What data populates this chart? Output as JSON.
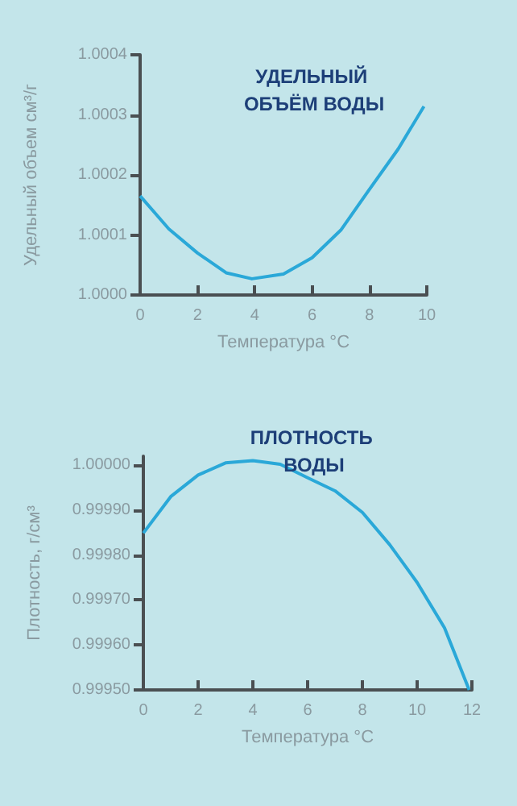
{
  "chart_data": [
    {
      "type": "line",
      "title": "УДЕЛЬНЫЙ ОБЪЁМ ВОДЫ",
      "xlabel": "Температура °C",
      "ylabel": "Удельный объем см³/г",
      "x": [
        0,
        1,
        2,
        3,
        3.9,
        5,
        6,
        7,
        8,
        9,
        9.9
      ],
      "series": [
        {
          "color": "#2aa8d8",
          "values": [
            1.000165,
            1.00011,
            1.00007,
            1.000037,
            1.000027,
            1.000035,
            1.000062,
            1.000108,
            1.000176,
            1.000243,
            1.000314
          ]
        }
      ],
      "xlim": [
        0,
        10
      ],
      "xticks": [
        0,
        2,
        4,
        6,
        8,
        10
      ],
      "ylim": [
        1,
        1.0004
      ],
      "yticks": [
        {
          "value": 1,
          "label": "1.0000"
        },
        1.0001,
        1.0002,
        1.0003,
        1.0004
      ],
      "grid": false,
      "marker": "none",
      "line_style": "solid"
    },
    {
      "type": "line",
      "title": "ПЛОТНОСТЬ ВОДЫ",
      "xlabel": "Температура °C",
      "ylabel": "Плотность, г/см³",
      "x": [
        0,
        1,
        2,
        3,
        4,
        5,
        6,
        7,
        8,
        9,
        10,
        11,
        11.9
      ],
      "series": [
        {
          "color": "#2aa8d8",
          "values": [
            0.999849,
            0.99993,
            0.999978,
            1.000005,
            1.00001,
            1.000002,
            0.999972,
            0.999943,
            0.999895,
            0.999823,
            0.999739,
            0.999638,
            0.9995
          ]
        }
      ],
      "xlim": [
        0,
        12
      ],
      "xticks": [
        0,
        2,
        4,
        6,
        8,
        10,
        12
      ],
      "ylim": [
        0.9995,
        1.00002
      ],
      "yticks": [
        {
          "value": 0.9995,
          "label": "0.99950"
        },
        {
          "value": 0.9996,
          "label": "0.99960"
        },
        {
          "value": 0.9997,
          "label": "0.99970"
        },
        {
          "value": 0.9998,
          "label": "0.99980"
        },
        {
          "value": 0.9999,
          "label": "0.99990"
        },
        {
          "value": 1,
          "label": "1.00000"
        }
      ],
      "grid": false,
      "marker": "none",
      "line_style": "solid"
    }
  ]
}
